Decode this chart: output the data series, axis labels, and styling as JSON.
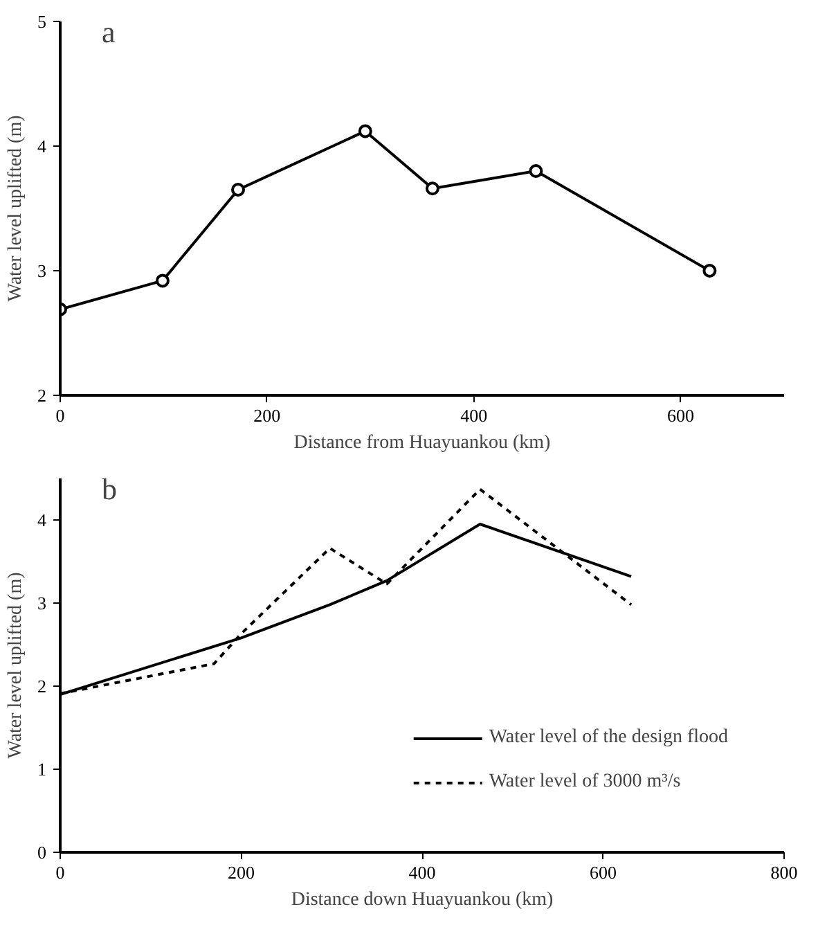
{
  "chart_data": [
    {
      "type": "line",
      "xlabel": "Distance from Huayuankou (km)",
      "ylabel": "Water level uplifted (m)",
      "annotations": [
        "a"
      ],
      "xlim": [
        0,
        700
      ],
      "xticks": [
        0,
        200,
        400,
        600
      ],
      "ylim": [
        2,
        5
      ],
      "yticks": [
        2,
        3,
        4,
        5
      ],
      "grid": false,
      "legend": false,
      "marker": "circle",
      "line_style": "solid",
      "series": [
        {
          "color": "#000000",
          "x": [
            0,
            99,
            172,
            295,
            360,
            460,
            628
          ],
          "values": [
            2.69,
            2.92,
            3.65,
            4.12,
            3.66,
            3.8,
            3.0
          ]
        }
      ]
    },
    {
      "type": "line",
      "xlabel": "Distance down Huayuankou (km)",
      "ylabel": "Water level uplifted (m)",
      "annotations": [
        "b"
      ],
      "xlim": [
        0,
        800
      ],
      "xticks": [
        0,
        200,
        400,
        600,
        800
      ],
      "ylim": [
        0,
        4.5
      ],
      "yticks": [
        0,
        1,
        2,
        3,
        4
      ],
      "grid": false,
      "legend": "bottom right",
      "marker": "none",
      "series": [
        {
          "name": "Water level of the design flood",
          "color": "#000000",
          "line_style": "solid",
          "x": [
            0,
            200,
            298,
            361,
            464,
            631
          ],
          "values": [
            1.9,
            2.58,
            2.98,
            3.27,
            3.95,
            3.32
          ]
        },
        {
          "name": "Water level of 3000 m³/s",
          "color": "#000000",
          "line_style": "dashed",
          "x": [
            0,
            170,
            200,
            298,
            361,
            464,
            631
          ],
          "values": [
            1.91,
            2.27,
            2.63,
            3.66,
            3.23,
            4.37,
            2.98
          ]
        }
      ]
    }
  ]
}
